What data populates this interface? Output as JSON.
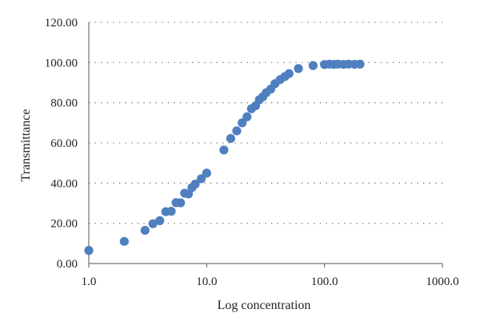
{
  "chart_data": {
    "type": "scatter",
    "title": "",
    "xlabel": "Log concentration",
    "ylabel": "Transmittance",
    "x_scale": "log",
    "xlim": [
      1,
      1000
    ],
    "ylim": [
      0,
      120
    ],
    "x_ticks": [
      1,
      10,
      100,
      1000
    ],
    "x_tick_labels": [
      "1.0",
      "10.0",
      "100.0",
      "1000.0"
    ],
    "y_ticks": [
      0,
      20,
      40,
      60,
      80,
      100,
      120
    ],
    "y_tick_labels": [
      "0.00",
      "20.00",
      "40.00",
      "60.00",
      "80.00",
      "100.00",
      "120.00"
    ],
    "grid": "horizontal dotted",
    "legend": "none",
    "marker_color": "#4f7fbf",
    "points": [
      {
        "x": 1.0,
        "y": 6.5
      },
      {
        "x": 2.0,
        "y": 11.0
      },
      {
        "x": 3.0,
        "y": 16.5
      },
      {
        "x": 3.5,
        "y": 19.8
      },
      {
        "x": 4.0,
        "y": 21.3
      },
      {
        "x": 4.5,
        "y": 25.8
      },
      {
        "x": 5.0,
        "y": 26.0
      },
      {
        "x": 5.5,
        "y": 30.3
      },
      {
        "x": 6.0,
        "y": 30.2
      },
      {
        "x": 6.5,
        "y": 35.0
      },
      {
        "x": 7.0,
        "y": 34.6
      },
      {
        "x": 7.5,
        "y": 37.8
      },
      {
        "x": 8.0,
        "y": 39.5
      },
      {
        "x": 9.0,
        "y": 42.2
      },
      {
        "x": 10.0,
        "y": 45.0
      },
      {
        "x": 14.0,
        "y": 56.5
      },
      {
        "x": 16.0,
        "y": 62.2
      },
      {
        "x": 18.0,
        "y": 66.0
      },
      {
        "x": 20.0,
        "y": 70.0
      },
      {
        "x": 22.0,
        "y": 73.0
      },
      {
        "x": 24.0,
        "y": 77.0
      },
      {
        "x": 26.0,
        "y": 78.5
      },
      {
        "x": 28.0,
        "y": 81.5
      },
      {
        "x": 30.0,
        "y": 83.0
      },
      {
        "x": 32.0,
        "y": 85.0
      },
      {
        "x": 35.0,
        "y": 86.8
      },
      {
        "x": 38.0,
        "y": 89.5
      },
      {
        "x": 42.0,
        "y": 91.5
      },
      {
        "x": 46.0,
        "y": 93.0
      },
      {
        "x": 50.0,
        "y": 94.5
      },
      {
        "x": 60.0,
        "y": 97.0
      },
      {
        "x": 80.0,
        "y": 98.5
      },
      {
        "x": 100.0,
        "y": 99.0
      },
      {
        "x": 110.0,
        "y": 99.2
      },
      {
        "x": 120.0,
        "y": 99.1
      },
      {
        "x": 130.0,
        "y": 99.2
      },
      {
        "x": 145.0,
        "y": 99.1
      },
      {
        "x": 160.0,
        "y": 99.2
      },
      {
        "x": 180.0,
        "y": 99.1
      },
      {
        "x": 200.0,
        "y": 99.2
      }
    ]
  }
}
